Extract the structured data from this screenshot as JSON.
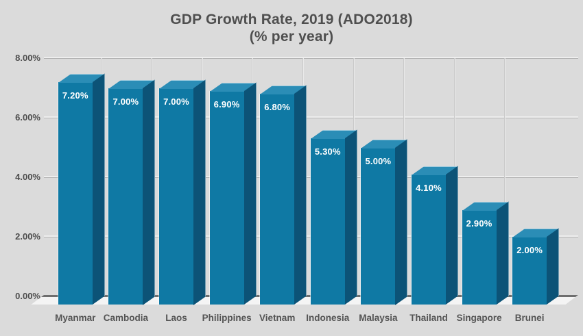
{
  "chart_data": {
    "type": "bar",
    "style": "3d",
    "title": "GDP Growth Rate, 2019 (ADO2018)",
    "subtitle": "(% per year)",
    "categories": [
      "Myanmar",
      "Cambodia",
      "Laos",
      "Philippines",
      "Vietnam",
      "Indonesia",
      "Malaysia",
      "Thailand",
      "Singapore",
      "Brunei"
    ],
    "values": [
      7.2,
      7.0,
      7.0,
      6.9,
      6.8,
      5.3,
      5.0,
      4.1,
      2.9,
      2.0
    ],
    "bar_labels": [
      "7.20%",
      "7.00%",
      "7.00%",
      "6.90%",
      "6.80%",
      "5.30%",
      "5.00%",
      "4.10%",
      "2.90%",
      "2.00%"
    ],
    "xlabel": "",
    "ylabel": "",
    "y_ticks": [
      "8.00%",
      "6.00%",
      "4.00%",
      "2.00%",
      "0.00%"
    ],
    "y_tick_values": [
      8,
      6,
      4,
      2,
      0
    ],
    "ylim": [
      0,
      8
    ],
    "grid": "horizontal gridlines with faint vertical category separators",
    "legend": "none",
    "colors": {
      "background": "#dbdbdb",
      "bar_front": "#0f79a4",
      "bar_top": "#2b8db6",
      "bar_side": "#0c5377",
      "value_label_text": "#ffffff",
      "axis_text": "#4d4d4d",
      "title_text": "#4f4f4f",
      "gridline": "#b3b3b3",
      "gridline_highlight": "#eeeeee",
      "baseline": "#6e6e6e",
      "floor": "#f4f4f4"
    }
  }
}
